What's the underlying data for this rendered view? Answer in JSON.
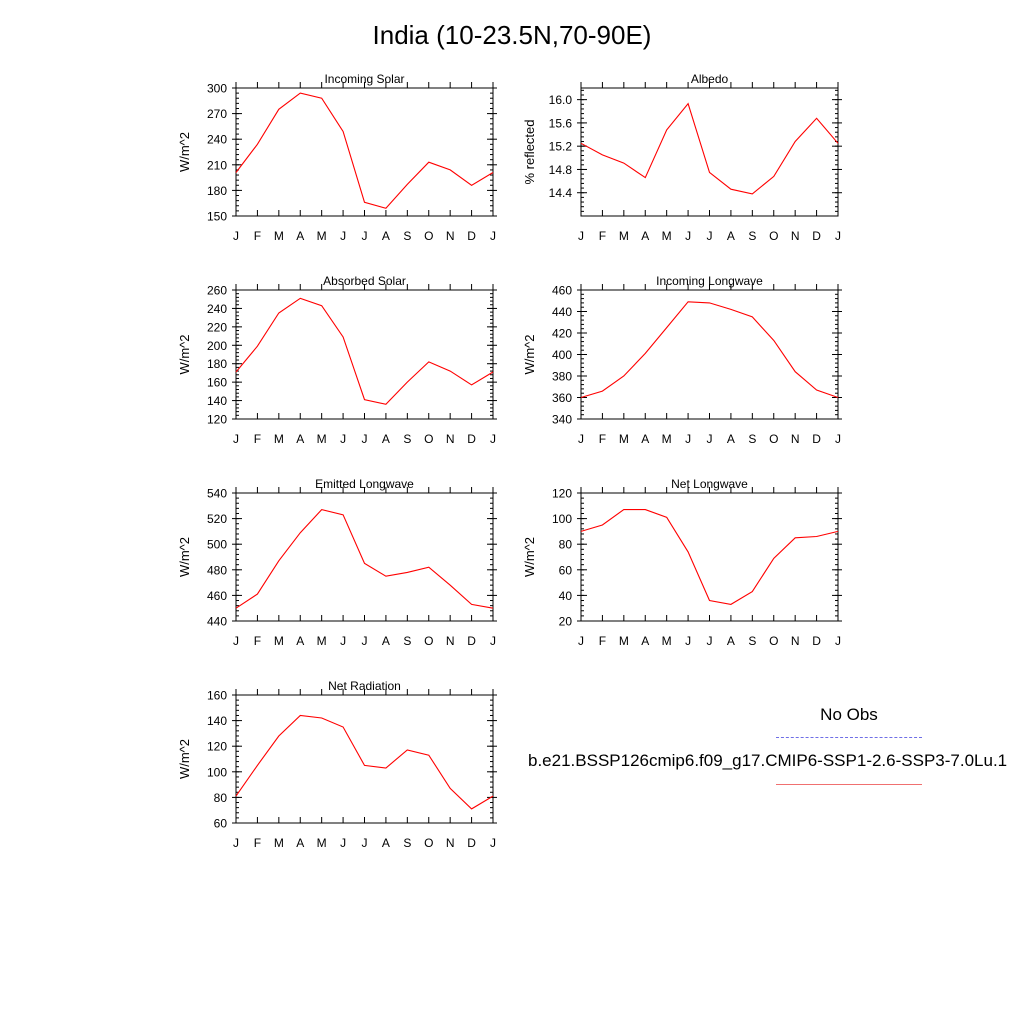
{
  "title": "India (10-23.5N,70-90E)",
  "legend": {
    "obs_label": "No Obs",
    "model_label": "b.e21.BSSP126cmip6.f09_g17.CMIP6-SSP1-2.6-SSP3-7.0Lu.1",
    "obs_color": "#6e6ee6",
    "model_color": "#ff0000"
  },
  "chart_data": [
    {
      "type": "line",
      "title": "Incoming Solar",
      "ylabel": "W/m^2",
      "categories": [
        "J",
        "F",
        "M",
        "A",
        "M",
        "J",
        "J",
        "A",
        "S",
        "O",
        "N",
        "D",
        "J"
      ],
      "ylim": [
        150,
        300
      ],
      "yticks": [
        "150",
        "180",
        "210",
        "240",
        "270",
        "300"
      ],
      "series": [
        {
          "color": "#ff0000",
          "values": [
            201,
            234,
            275,
            294,
            288,
            249,
            166,
            159,
            187,
            213,
            204,
            186,
            201
          ]
        }
      ]
    },
    {
      "type": "line",
      "title": "Albedo",
      "ylabel": "% reflected",
      "categories": [
        "J",
        "F",
        "M",
        "A",
        "M",
        "J",
        "J",
        "A",
        "S",
        "O",
        "N",
        "D",
        "J"
      ],
      "ylim": [
        14.0,
        16.2
      ],
      "yticks": [
        "14.4",
        "14.8",
        "15.2",
        "15.6",
        "16.0"
      ],
      "series": [
        {
          "color": "#ff0000",
          "values": [
            15.25,
            15.05,
            14.91,
            14.66,
            15.48,
            15.93,
            14.75,
            14.46,
            14.38,
            14.68,
            15.28,
            15.68,
            15.25
          ]
        }
      ]
    },
    {
      "type": "line",
      "title": "Absorbed Solar",
      "ylabel": "W/m^2",
      "categories": [
        "J",
        "F",
        "M",
        "A",
        "M",
        "J",
        "J",
        "A",
        "S",
        "O",
        "N",
        "D",
        "J"
      ],
      "ylim": [
        120,
        260
      ],
      "yticks": [
        "120",
        "140",
        "160",
        "180",
        "200",
        "220",
        "240",
        "260"
      ],
      "series": [
        {
          "color": "#ff0000",
          "values": [
            171,
            199,
            235,
            251,
            243,
            209,
            141,
            136,
            160,
            182,
            172,
            157,
            171
          ]
        }
      ]
    },
    {
      "type": "line",
      "title": "Incoming Longwave",
      "ylabel": "W/m^2",
      "categories": [
        "J",
        "F",
        "M",
        "A",
        "M",
        "J",
        "J",
        "A",
        "S",
        "O",
        "N",
        "D",
        "J"
      ],
      "ylim": [
        340,
        460
      ],
      "yticks": [
        "340",
        "360",
        "380",
        "400",
        "420",
        "440",
        "460"
      ],
      "series": [
        {
          "color": "#ff0000",
          "values": [
            360,
            366,
            380,
            401,
            425,
            449,
            448,
            442,
            435,
            413,
            384,
            367,
            360
          ]
        }
      ]
    },
    {
      "type": "line",
      "title": "Emitted Longwave",
      "ylabel": "W/m^2",
      "categories": [
        "J",
        "F",
        "M",
        "A",
        "M",
        "J",
        "J",
        "A",
        "S",
        "O",
        "N",
        "D",
        "J"
      ],
      "ylim": [
        440,
        540
      ],
      "yticks": [
        "440",
        "460",
        "480",
        "500",
        "520",
        "540"
      ],
      "series": [
        {
          "color": "#ff0000",
          "values": [
            450,
            461,
            487,
            509,
            527,
            523,
            485,
            475,
            478,
            482,
            468,
            453,
            450
          ]
        }
      ]
    },
    {
      "type": "line",
      "title": "Net Longwave",
      "ylabel": "W/m^2",
      "categories": [
        "J",
        "F",
        "M",
        "A",
        "M",
        "J",
        "J",
        "A",
        "S",
        "O",
        "N",
        "D",
        "J"
      ],
      "ylim": [
        20,
        120
      ],
      "yticks": [
        "20",
        "40",
        "60",
        "80",
        "100",
        "120"
      ],
      "series": [
        {
          "color": "#ff0000",
          "values": [
            90,
            95,
            107,
            107,
            101,
            74,
            36,
            33,
            43,
            69,
            85,
            86,
            90
          ]
        }
      ]
    },
    {
      "type": "line",
      "title": "Net Radiation",
      "ylabel": "W/m^2",
      "categories": [
        "J",
        "F",
        "M",
        "A",
        "M",
        "J",
        "J",
        "A",
        "S",
        "O",
        "N",
        "D",
        "J"
      ],
      "ylim": [
        60,
        160
      ],
      "yticks": [
        "60",
        "80",
        "100",
        "120",
        "140",
        "160"
      ],
      "series": [
        {
          "color": "#ff0000",
          "values": [
            81,
            105,
            128,
            144,
            142,
            135,
            105,
            103,
            117,
            113,
            87,
            71,
            81
          ]
        }
      ]
    }
  ]
}
